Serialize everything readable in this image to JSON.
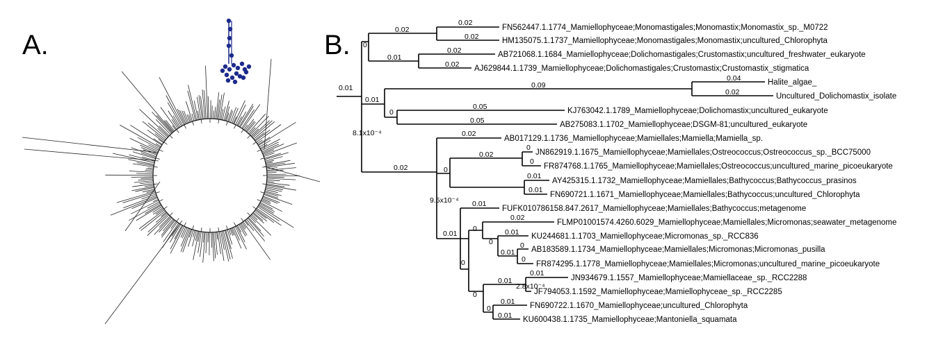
{
  "panels": {
    "a_label": "A.",
    "b_label": "B."
  },
  "colors": {
    "highlight": "#1c2a8c",
    "line": "#000000"
  },
  "tips": [
    "FN562447.1.1774_Mamiellophyceae;Monomastigales;Monomastix;Monomastix_sp._M0722",
    "HM135075.1.1737_Mamiellophyceae;Monomastigales;Monomastix;uncultured_Chlorophyta",
    "AB721068.1.1684_Mamiellophyceae;Dolichomastigales;Crustomastix;uncultured_freshwater_eukaryote",
    "AJ629844.1.1739_Mamiellophyceae;Dolichomastigales;Crustomastix;Crustomastix_stigmatica",
    "Halite_algae_",
    "Uncultured_Dolichomastix_isolate",
    "KJ763042.1.1789_Mamiellophyceae;Dolichomastix;uncultured_eukaryote",
    "AB275083.1.1702_Mamiellophyceae;DSGM-81;uncultured_eukaryote",
    "AB017129.1.1736_Mamiellophyceae;Mamiellales;Mamiella;Mamiella_sp.",
    "JN862919.1.1675_Mamiellophyceae;Mamiellales;Ostreococcus;Ostreococcus_sp._BCC75000",
    "FR874768.1.1765_Mamiellophyceae;Mamiellales;Ostreococcus;uncultured_marine_picoeukaryote",
    "AY425315.1.1732_Mamiellophyceae;Mamiellales;Bathycoccus;Bathycoccus_prasinos",
    "FN690721.1.1671_Mamiellophyceae;Mamiellales;Bathycoccus;uncultured_Chlorophyta",
    "FUFK010786158.847.2617_Mamiellophyceae;Mamiellales;Bathycoccus;metagenome",
    "FLMP01001574.4260.6029_Mamiellophyceae;Mamiellales;Micromonas;seawater_metagenome",
    "KU244681.1.1703_Mamiellophyceae;Micromonas_sp._RCC836",
    "AB183589.1.1734_Mamiellophyceae;Mamiellales;Micromonas;Micromonas_pusilla",
    "FR874295.1.1778_Mamiellophyceae;Mamiellales;Micromonas;uncultured_marine_picoeukaryote",
    "JN934679.1.1557_Mamiellophyceae;Mamiellaceae_sp._RCC2288",
    "JF794053.1.1592_Mamiellophyceae;Mamiellophyceae_sp._RCC2285",
    "FN690722.1.1670_Mamiellophyceae;uncultured_Chlorophyta",
    "KU600438.1.1735_Mamiellophyceae;Mantoniella_squamata"
  ],
  "branch_lengths": [
    "0.01",
    "0.02",
    "0.02",
    "0.02",
    "0.01",
    "0.02",
    "0.02",
    "0.01",
    "0.09",
    "0.04",
    "0.02",
    "0.05",
    "0.05",
    "0.02",
    "0.02",
    "0.02",
    "0.01",
    "0.01",
    "0.01",
    "0.02",
    "0.01",
    "0.01",
    "0.01",
    "0.01",
    "0.01"
  ],
  "node_labels": [
    "0",
    "0",
    "0",
    "0",
    "0",
    "0",
    "0",
    "0",
    "0",
    "0",
    "0",
    "0",
    "0"
  ],
  "small_labels": {
    "n1": "8.1x10⁻⁴",
    "n2": "9.5x10⁻⁴",
    "n3": "2.8x10⁻⁴"
  }
}
